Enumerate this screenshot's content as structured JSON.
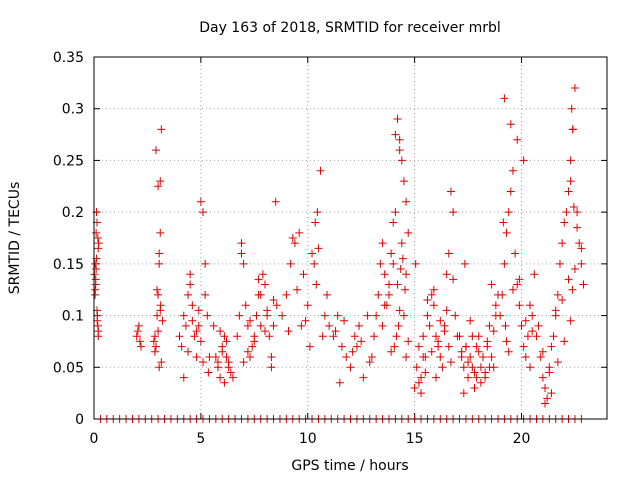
{
  "chart_data": {
    "type": "scatter",
    "title": "Day 163 of 2018, SRMTID for receiver mrbl",
    "xlabel": "GPS time / hours",
    "ylabel": "SRMTID / TECUs",
    "xlim": [
      0,
      24
    ],
    "ylim": [
      0,
      0.35
    ],
    "xticks": [
      0,
      5,
      10,
      15,
      20
    ],
    "xtick_labels": [
      "0",
      "5",
      "10",
      "15",
      "20"
    ],
    "yticks": [
      0,
      0.05,
      0.1,
      0.15,
      0.2,
      0.25,
      0.3,
      0.35
    ],
    "ytick_labels": [
      "0",
      "0.05",
      "0.1",
      "0.15",
      "0.2",
      "0.25",
      "0.3",
      "0.35"
    ],
    "grid": true,
    "marker": "plus",
    "color": "#dd0000",
    "series": [
      {
        "name": "SRMTID",
        "x": [
          0.02,
          0.05,
          0.08,
          0.1,
          0.12,
          0.14,
          0.16,
          0.18,
          0.2,
          0.22,
          0.05,
          0.1,
          0.15,
          0.2,
          0.08,
          0.12,
          0.18,
          0.06,
          0.14,
          0.2,
          2.0,
          2.1,
          2.2,
          2.05,
          2.15,
          2.8,
          2.85,
          2.9,
          2.95,
          3.0,
          3.05,
          3.1,
          3.15,
          2.9,
          3.0,
          3.1,
          3.05,
          2.95,
          3.1,
          3.2,
          3.0,
          3.15,
          2.85,
          3.05,
          3.12,
          4.0,
          4.1,
          4.2,
          4.3,
          4.4,
          4.5,
          4.6,
          4.7,
          4.8,
          4.9,
          5.0,
          5.1,
          5.2,
          5.3,
          5.4,
          4.2,
          4.5,
          4.8,
          5.0,
          5.2,
          4.4,
          4.6,
          4.9,
          5.1,
          5.35,
          5.6,
          5.7,
          5.8,
          5.9,
          6.0,
          6.1,
          6.2,
          6.3,
          6.4,
          6.5,
          5.8,
          6.0,
          6.2,
          6.1,
          5.9,
          6.3,
          6.7,
          6.8,
          6.9,
          7.0,
          7.1,
          7.2,
          7.3,
          7.4,
          7.5,
          7.6,
          7.7,
          7.8,
          7.9,
          8.0,
          8.1,
          8.2,
          8.3,
          8.4,
          8.5,
          6.9,
          7.2,
          7.5,
          7.8,
          8.1,
          8.4,
          7.0,
          7.3,
          7.7,
          8.0,
          8.3,
          8.55,
          8.8,
          9.0,
          9.2,
          9.4,
          9.6,
          9.8,
          10.0,
          10.2,
          10.4,
          10.6,
          10.8,
          9.1,
          9.5,
          9.9,
          10.3,
          10.7,
          9.3,
          9.7,
          10.1,
          10.5,
          10.9,
          10.35,
          10.45,
          11.0,
          11.2,
          11.4,
          11.6,
          11.8,
          12.0,
          12.2,
          12.4,
          12.6,
          12.8,
          13.0,
          11.3,
          11.7,
          12.1,
          12.5,
          12.9,
          11.5,
          12.3,
          13.1,
          13.2,
          13.3,
          13.4,
          13.5,
          13.6,
          13.7,
          13.8,
          13.9,
          14.0,
          14.1,
          14.2,
          14.3,
          14.4,
          14.5,
          14.6,
          14.7,
          13.5,
          13.8,
          14.0,
          14.2,
          14.4,
          14.6,
          13.6,
          14.1,
          14.3,
          14.5,
          14.15,
          14.25,
          14.35,
          14.45,
          14.55,
          13.9,
          14.05,
          14.3,
          14.6,
          14.7,
          15.0,
          15.1,
          15.2,
          15.3,
          15.4,
          15.5,
          15.6,
          15.7,
          15.8,
          15.9,
          16.0,
          16.1,
          16.2,
          16.3,
          16.4,
          16.5,
          16.6,
          16.7,
          16.8,
          16.9,
          17.0,
          15.2,
          15.5,
          15.8,
          16.1,
          16.4,
          16.7,
          15.3,
          15.6,
          15.9,
          16.2,
          16.5,
          16.8,
          15.05,
          15.4,
          16.0,
          16.6,
          17.1,
          17.2,
          17.3,
          17.4,
          17.5,
          17.6,
          17.7,
          17.8,
          17.9,
          18.0,
          18.1,
          18.2,
          18.3,
          18.4,
          18.5,
          18.6,
          18.7,
          18.8,
          18.9,
          17.2,
          17.5,
          17.8,
          18.1,
          18.4,
          18.7,
          17.3,
          17.6,
          17.9,
          18.2,
          18.5,
          18.8,
          17.4,
          17.7,
          18.0,
          18.3,
          18.6,
          17.35,
          19.0,
          19.1,
          19.2,
          19.3,
          19.4,
          19.5,
          19.6,
          19.7,
          19.8,
          19.9,
          20.0,
          20.1,
          20.2,
          20.3,
          20.4,
          20.5,
          20.6,
          19.2,
          19.5,
          19.8,
          20.1,
          20.4,
          19.25,
          19.3,
          19.15,
          19.4,
          19.6,
          19.9,
          20.2,
          20.5,
          20.7,
          20.8,
          20.9,
          21.0,
          21.1,
          21.2,
          21.3,
          21.4,
          21.5,
          21.6,
          21.7,
          21.8,
          21.9,
          22.0,
          22.1,
          22.2,
          22.3,
          22.4,
          22.5,
          22.6,
          22.7,
          22.8,
          22.9,
          21.0,
          21.3,
          21.6,
          21.9,
          22.2,
          22.5,
          22.8,
          21.1,
          21.4,
          21.7,
          22.0,
          22.3,
          22.6,
          22.35,
          22.4,
          22.3,
          22.45,
          22.38,
          0.3,
          0.6,
          0.9,
          1.2,
          1.5,
          1.8,
          2.1,
          2.4,
          2.7,
          3.0,
          3.3,
          3.6,
          3.9,
          4.2,
          4.5,
          4.8,
          5.1,
          5.4,
          5.7,
          6.0,
          6.3,
          6.6,
          6.9,
          7.2,
          7.5,
          7.8,
          8.1,
          8.4,
          8.7,
          9.0,
          9.3,
          9.6,
          9.9,
          10.2,
          10.5,
          10.8,
          11.1,
          11.4,
          11.7,
          12.0,
          12.3,
          12.6,
          12.9,
          13.2,
          13.5,
          13.8,
          14.1,
          14.4,
          14.7,
          15.0,
          15.3,
          15.6,
          15.9,
          16.2,
          16.5,
          16.8,
          17.1,
          17.4,
          17.7,
          18.0,
          18.3,
          18.6,
          18.9,
          19.2,
          19.5,
          19.8,
          20.1,
          20.4,
          20.7,
          21.0,
          21.3,
          21.6,
          21.9,
          22.2,
          22.5,
          22.8
        ],
        "y": [
          0.14,
          0.15,
          0.13,
          0.18,
          0.2,
          0.19,
          0.1,
          0.09,
          0.08,
          0.17,
          0.12,
          0.145,
          0.095,
          0.085,
          0.135,
          0.155,
          0.175,
          0.125,
          0.105,
          0.165,
          0.08,
          0.09,
          0.07,
          0.085,
          0.075,
          0.075,
          0.08,
          0.07,
          0.1,
          0.12,
          0.15,
          0.23,
          0.28,
          0.26,
          0.225,
          0.18,
          0.16,
          0.125,
          0.105,
          0.095,
          0.085,
          0.055,
          0.065,
          0.05,
          0.11,
          0.08,
          0.07,
          0.1,
          0.09,
          0.12,
          0.14,
          0.11,
          0.08,
          0.06,
          0.09,
          0.21,
          0.2,
          0.15,
          0.1,
          0.06,
          0.04,
          0.13,
          0.085,
          0.075,
          0.12,
          0.065,
          0.095,
          0.105,
          0.055,
          0.045,
          0.09,
          0.06,
          0.05,
          0.04,
          0.07,
          0.08,
          0.06,
          0.05,
          0.045,
          0.04,
          0.055,
          0.065,
          0.075,
          0.035,
          0.085,
          0.055,
          0.08,
          0.1,
          0.17,
          0.15,
          0.11,
          0.09,
          0.06,
          0.07,
          0.08,
          0.1,
          0.12,
          0.09,
          0.14,
          0.13,
          0.1,
          0.08,
          0.05,
          0.09,
          0.21,
          0.16,
          0.065,
          0.075,
          0.12,
          0.105,
          0.115,
          0.055,
          0.095,
          0.135,
          0.085,
          0.06,
          0.11,
          0.1,
          0.12,
          0.15,
          0.17,
          0.18,
          0.14,
          0.11,
          0.16,
          0.13,
          0.24,
          0.1,
          0.085,
          0.125,
          0.095,
          0.15,
          0.08,
          0.175,
          0.09,
          0.07,
          0.165,
          0.12,
          0.19,
          0.2,
          0.09,
          0.08,
          0.1,
          0.07,
          0.06,
          0.05,
          0.08,
          0.09,
          0.04,
          0.1,
          0.06,
          0.085,
          0.095,
          0.065,
          0.075,
          0.055,
          0.035,
          0.07,
          0.08,
          0.1,
          0.12,
          0.15,
          0.17,
          0.14,
          0.11,
          0.13,
          0.16,
          0.19,
          0.2,
          0.29,
          0.27,
          0.25,
          0.23,
          0.21,
          0.18,
          0.09,
          0.12,
          0.15,
          0.13,
          0.17,
          0.14,
          0.11,
          0.275,
          0.26,
          0.1,
          0.08,
          0.09,
          0.145,
          0.155,
          0.125,
          0.065,
          0.07,
          0.105,
          0.06,
          0.075,
          0.03,
          0.05,
          0.07,
          0.04,
          0.08,
          0.06,
          0.1,
          0.09,
          0.12,
          0.11,
          0.08,
          0.07,
          0.06,
          0.05,
          0.09,
          0.14,
          0.16,
          0.22,
          0.2,
          0.1,
          0.08,
          0.035,
          0.045,
          0.065,
          0.075,
          0.085,
          0.055,
          0.025,
          0.115,
          0.125,
          0.095,
          0.105,
          0.135,
          0.15,
          0.06,
          0.04,
          0.07,
          0.08,
          0.06,
          0.05,
          0.07,
          0.04,
          0.06,
          0.05,
          0.03,
          0.07,
          0.08,
          0.05,
          0.06,
          0.04,
          0.07,
          0.09,
          0.06,
          0.05,
          0.1,
          0.12,
          0.065,
          0.055,
          0.045,
          0.035,
          0.075,
          0.085,
          0.025,
          0.095,
          0.04,
          0.06,
          0.05,
          0.11,
          0.07,
          0.08,
          0.065,
          0.045,
          0.13,
          0.15,
          0.1,
          0.12,
          0.15,
          0.18,
          0.2,
          0.22,
          0.24,
          0.16,
          0.13,
          0.11,
          0.09,
          0.07,
          0.06,
          0.08,
          0.05,
          0.1,
          0.14,
          0.31,
          0.285,
          0.27,
          0.25,
          0.11,
          0.09,
          0.075,
          0.19,
          0.065,
          0.125,
          0.135,
          0.095,
          0.085,
          0.08,
          0.09,
          0.06,
          0.04,
          0.03,
          0.02,
          0.05,
          0.07,
          0.08,
          0.1,
          0.12,
          0.15,
          0.17,
          0.19,
          0.2,
          0.22,
          0.25,
          0.28,
          0.32,
          0.2,
          0.17,
          0.15,
          0.13,
          0.065,
          0.045,
          0.105,
          0.115,
          0.135,
          0.145,
          0.165,
          0.015,
          0.025,
          0.055,
          0.075,
          0.095,
          0.185,
          0.3,
          0.28,
          0.23,
          0.205,
          0.125,
          0,
          0,
          0,
          0,
          0,
          0,
          0,
          0,
          0,
          0,
          0,
          0,
          0,
          0,
          0,
          0,
          0,
          0,
          0,
          0,
          0,
          0,
          0,
          0,
          0,
          0,
          0,
          0,
          0,
          0,
          0,
          0,
          0,
          0,
          0,
          0,
          0,
          0,
          0,
          0,
          0,
          0,
          0,
          0,
          0,
          0,
          0,
          0,
          0,
          0,
          0,
          0,
          0,
          0,
          0,
          0,
          0,
          0,
          0,
          0,
          0,
          0,
          0,
          0,
          0,
          0,
          0,
          0,
          0,
          0,
          0,
          0,
          0,
          0,
          0,
          0
        ]
      }
    ]
  }
}
